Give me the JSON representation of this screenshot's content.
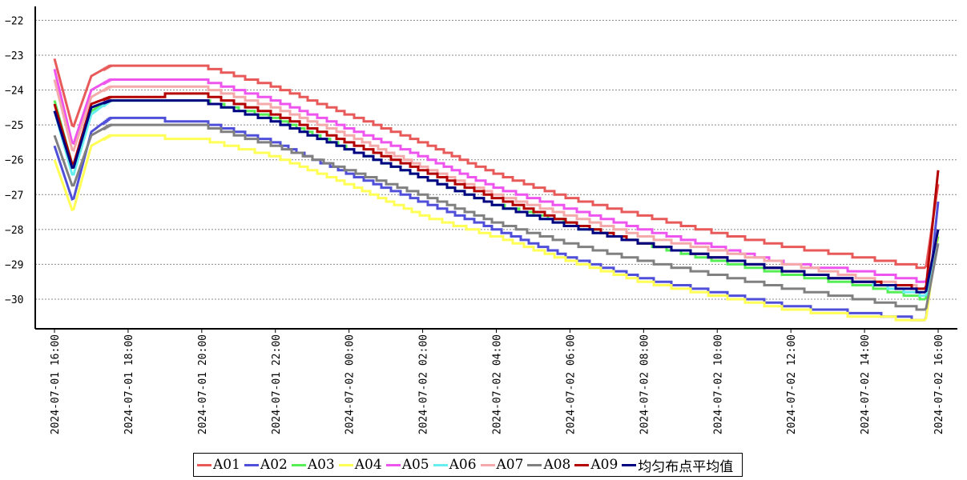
{
  "chart_data": {
    "type": "line",
    "title": "",
    "xlabel": "",
    "ylabel": "",
    "ylim": [
      -30.85,
      -21.6
    ],
    "yticks": [
      -22,
      -23,
      -24,
      -25,
      -26,
      -27,
      -28,
      -29,
      -30
    ],
    "grid": "horizontal dotted",
    "legend_position": "bottom",
    "x_range": [
      "2024-07-01 15:40",
      "2024-07-02 16:25"
    ],
    "xticks": [
      "2024-07-01 16:00",
      "2024-07-01 18:00",
      "2024-07-01 20:00",
      "2024-07-01 22:00",
      "2024-07-02 00:00",
      "2024-07-02 02:00",
      "2024-07-02 04:00",
      "2024-07-02 06:00",
      "2024-07-02 08:00",
      "2024-07-02 10:00",
      "2024-07-02 12:00",
      "2024-07-02 14:00",
      "2024-07-02 16:00"
    ],
    "x": [
      "2024-07-01 16:00",
      "2024-07-01 16:30",
      "2024-07-01 17:00",
      "2024-07-01 17:30",
      "2024-07-01 18:00",
      "2024-07-01 20:00",
      "2024-07-01 22:00",
      "2024-07-02 00:00",
      "2024-07-02 02:00",
      "2024-07-02 04:00",
      "2024-07-02 06:00",
      "2024-07-02 08:00",
      "2024-07-02 10:00",
      "2024-07-02 12:00",
      "2024-07-02 14:00",
      "2024-07-02 15:40",
      "2024-07-02 16:00"
    ],
    "series": [
      {
        "name": "A01",
        "color": "#e85a5a",
        "values": [
          -23.1,
          -25.1,
          -23.6,
          -23.3,
          -23.3,
          -23.3,
          -23.9,
          -24.7,
          -25.5,
          -26.4,
          -27.1,
          -27.6,
          -28.1,
          -28.5,
          -28.8,
          -29.1,
          -26.7
        ]
      },
      {
        "name": "A02",
        "color": "#4f4fd9",
        "values": [
          -25.6,
          -27.2,
          -25.2,
          -24.8,
          -24.8,
          -24.9,
          -25.5,
          -26.4,
          -27.2,
          -28.0,
          -28.8,
          -29.4,
          -29.8,
          -30.2,
          -30.4,
          -30.6,
          -27.2
        ]
      },
      {
        "name": "A03",
        "color": "#55ee55",
        "values": [
          -24.3,
          -26.2,
          -24.6,
          -24.3,
          -24.3,
          -24.3,
          -24.8,
          -25.7,
          -26.5,
          -27.3,
          -27.8,
          -28.4,
          -28.9,
          -29.3,
          -29.6,
          -30.0,
          -28.2
        ]
      },
      {
        "name": "A04",
        "color": "#ffff55",
        "values": [
          -26.0,
          -27.5,
          -25.6,
          -25.3,
          -25.3,
          -25.4,
          -25.9,
          -26.7,
          -27.6,
          -28.2,
          -28.9,
          -29.5,
          -29.9,
          -30.3,
          -30.5,
          -30.6,
          -28.0
        ]
      },
      {
        "name": "A05",
        "color": "#ee55ee",
        "values": [
          -23.4,
          -25.6,
          -24.0,
          -23.7,
          -23.7,
          -23.7,
          -24.3,
          -25.1,
          -25.9,
          -26.8,
          -27.4,
          -28.0,
          -28.5,
          -29.0,
          -29.2,
          -29.5,
          -28.4
        ]
      },
      {
        "name": "A06",
        "color": "#66eeee",
        "values": [
          -24.6,
          -26.5,
          -24.7,
          -24.3,
          -24.3,
          -24.3,
          -24.9,
          -25.7,
          -26.5,
          -27.3,
          -27.9,
          -28.4,
          -28.8,
          -29.2,
          -29.5,
          -29.9,
          -28.4
        ]
      },
      {
        "name": "A07",
        "color": "#f4aaaa",
        "values": [
          -23.7,
          -25.8,
          -24.2,
          -23.9,
          -23.9,
          -23.9,
          -24.5,
          -25.3,
          -26.2,
          -27.0,
          -27.6,
          -28.2,
          -28.6,
          -29.0,
          -29.4,
          -29.7,
          -28.0
        ]
      },
      {
        "name": "A08",
        "color": "#808080",
        "values": [
          -25.3,
          -26.8,
          -25.3,
          -25.0,
          -25.0,
          -25.0,
          -25.6,
          -26.3,
          -27.0,
          -27.8,
          -28.4,
          -28.9,
          -29.3,
          -29.7,
          -30.0,
          -30.3,
          -28.4
        ]
      },
      {
        "name": "A09",
        "color": "#b30000",
        "values": [
          -24.4,
          -26.2,
          -24.4,
          -24.2,
          -24.2,
          -24.1,
          -24.7,
          -25.5,
          -26.3,
          -27.1,
          -27.8,
          -28.4,
          -28.8,
          -29.2,
          -29.5,
          -29.7,
          -26.3
        ]
      },
      {
        "name": "均匀布点平均值",
        "color": "#000080",
        "values": [
          -24.6,
          -26.3,
          -24.5,
          -24.3,
          -24.3,
          -24.3,
          -24.9,
          -25.7,
          -26.5,
          -27.3,
          -27.9,
          -28.4,
          -28.8,
          -29.2,
          -29.5,
          -29.8,
          -28.0
        ]
      }
    ]
  }
}
